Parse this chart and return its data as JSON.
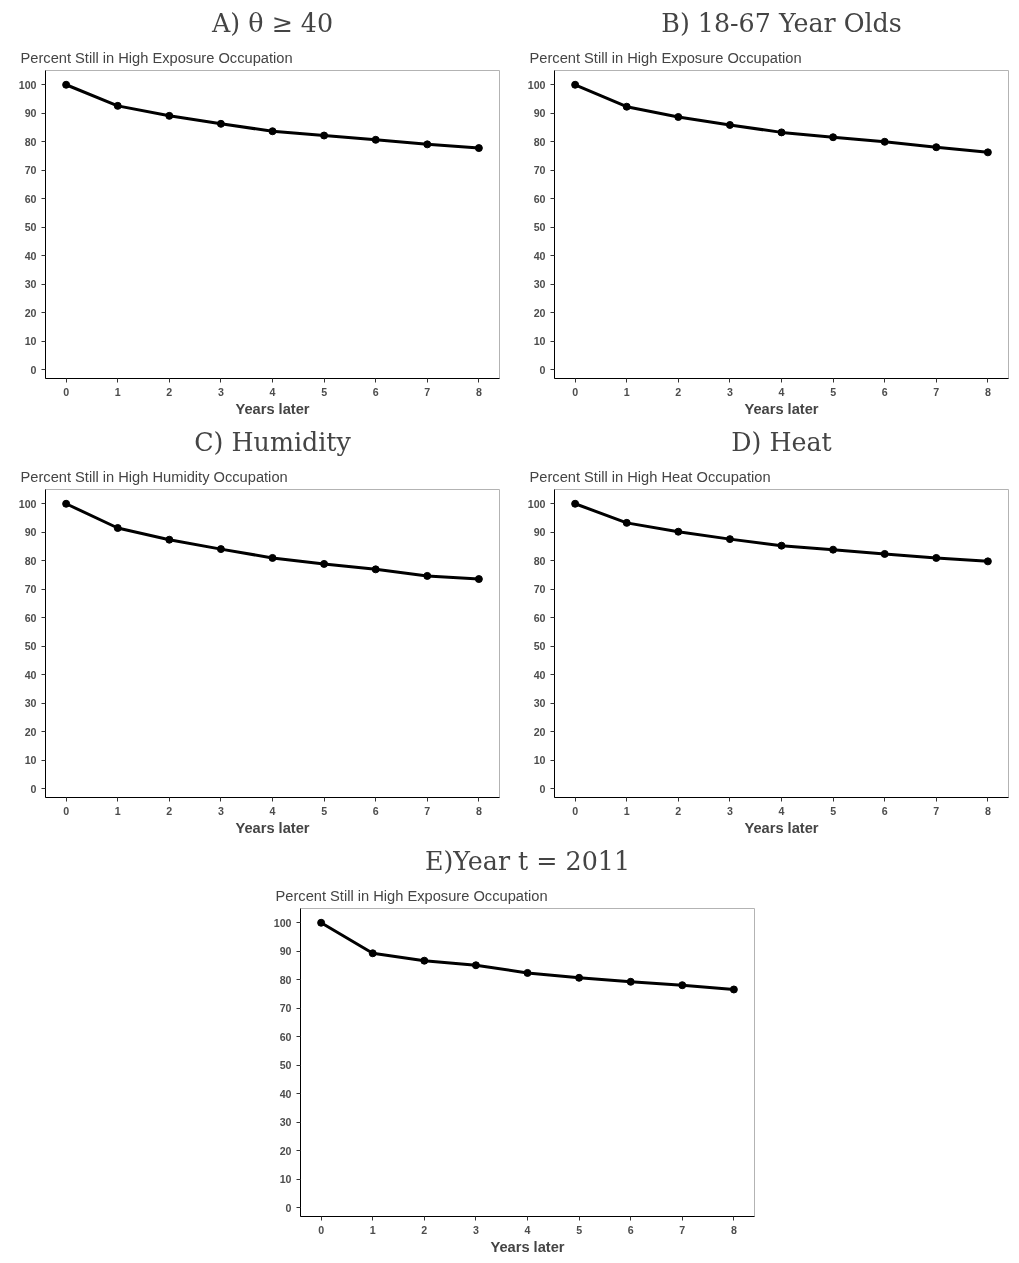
{
  "chart_data": [
    {
      "type": "line",
      "title": "A) θ ≥ 40",
      "subtitle": "Percent Still in High Exposure Occupation",
      "xlabel": "Years later",
      "x": [
        0,
        1,
        2,
        3,
        4,
        5,
        6,
        7,
        8
      ],
      "series": [
        {
          "color": "#000000",
          "values": [
            100,
            92.6,
            89.1,
            86.3,
            83.7,
            82.2,
            80.7,
            79.1,
            77.8
          ]
        }
      ],
      "xlim": [
        -0.4,
        8.4
      ],
      "xticks": [
        0,
        1,
        2,
        3,
        4,
        5,
        6,
        7,
        8
      ],
      "ylim": [
        -3,
        105
      ],
      "yticks": [
        0,
        10,
        20,
        30,
        40,
        50,
        60,
        70,
        80,
        90,
        100
      ],
      "grid": false,
      "marker": "circle",
      "line_style": "solid"
    },
    {
      "type": "line",
      "title": "B) 18-67 Year Olds",
      "subtitle": "Percent Still in High Exposure Occupation",
      "xlabel": "Years later",
      "x": [
        0,
        1,
        2,
        3,
        4,
        5,
        6,
        7,
        8
      ],
      "series": [
        {
          "color": "#000000",
          "values": [
            100,
            92.3,
            88.7,
            85.9,
            83.3,
            81.6,
            80.0,
            78.1,
            76.3
          ]
        }
      ],
      "xlim": [
        -0.4,
        8.4
      ],
      "xticks": [
        0,
        1,
        2,
        3,
        4,
        5,
        6,
        7,
        8
      ],
      "ylim": [
        -3,
        105
      ],
      "yticks": [
        0,
        10,
        20,
        30,
        40,
        50,
        60,
        70,
        80,
        90,
        100
      ],
      "grid": false,
      "marker": "circle",
      "line_style": "solid"
    },
    {
      "type": "line",
      "title": "C) Humidity",
      "subtitle": "Percent Still in High Humidity Occupation",
      "xlabel": "Years later",
      "x": [
        0,
        1,
        2,
        3,
        4,
        5,
        6,
        7,
        8
      ],
      "series": [
        {
          "color": "#000000",
          "values": [
            100,
            91.5,
            87.4,
            84.1,
            81.0,
            78.9,
            77.0,
            74.7,
            73.6
          ]
        }
      ],
      "xlim": [
        -0.4,
        8.4
      ],
      "xticks": [
        0,
        1,
        2,
        3,
        4,
        5,
        6,
        7,
        8
      ],
      "ylim": [
        -3,
        105
      ],
      "yticks": [
        0,
        10,
        20,
        30,
        40,
        50,
        60,
        70,
        80,
        90,
        100
      ],
      "grid": false,
      "marker": "circle",
      "line_style": "solid"
    },
    {
      "type": "line",
      "title": "D) Heat",
      "subtitle": "Percent Still in High Heat Occupation",
      "xlabel": "Years later",
      "x": [
        0,
        1,
        2,
        3,
        4,
        5,
        6,
        7,
        8
      ],
      "series": [
        {
          "color": "#000000",
          "values": [
            100,
            93.3,
            90.2,
            87.6,
            85.3,
            83.9,
            82.4,
            81.0,
            79.8
          ]
        }
      ],
      "xlim": [
        -0.4,
        8.4
      ],
      "xticks": [
        0,
        1,
        2,
        3,
        4,
        5,
        6,
        7,
        8
      ],
      "ylim": [
        -3,
        105
      ],
      "yticks": [
        0,
        10,
        20,
        30,
        40,
        50,
        60,
        70,
        80,
        90,
        100
      ],
      "grid": false,
      "marker": "circle",
      "line_style": "solid"
    },
    {
      "type": "line",
      "title": "E)Year t = 2011",
      "subtitle": "Percent Still in High Exposure Occupation",
      "xlabel": "Years later",
      "x": [
        0,
        1,
        2,
        3,
        4,
        5,
        6,
        7,
        8
      ],
      "series": [
        {
          "color": "#000000",
          "values": [
            100,
            89.3,
            86.7,
            85.1,
            82.4,
            80.7,
            79.3,
            78.1,
            76.6
          ]
        }
      ],
      "xlim": [
        -0.4,
        8.4
      ],
      "xticks": [
        0,
        1,
        2,
        3,
        4,
        5,
        6,
        7,
        8
      ],
      "ylim": [
        -3,
        105
      ],
      "yticks": [
        0,
        10,
        20,
        30,
        40,
        50,
        60,
        70,
        80,
        90,
        100
      ],
      "grid": false,
      "marker": "circle",
      "line_style": "solid"
    }
  ]
}
